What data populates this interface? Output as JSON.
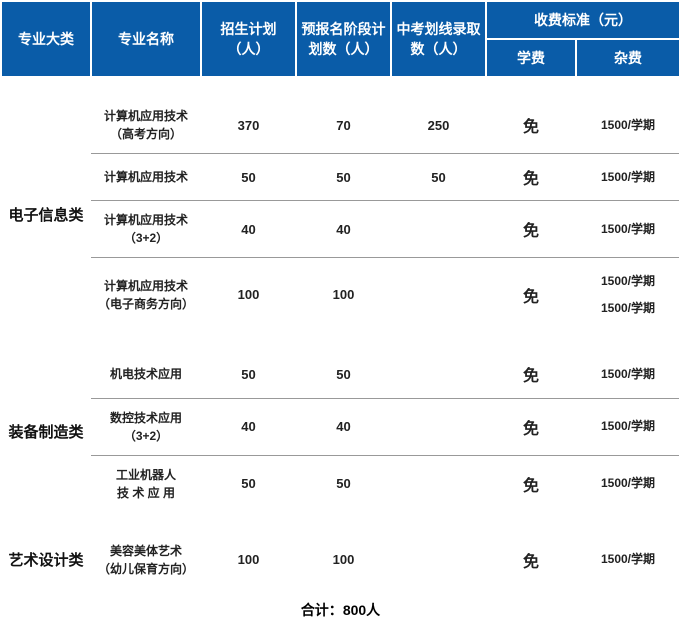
{
  "header": {
    "category": "专业大类",
    "major": "专业名称",
    "plan": "招生计划（人）",
    "pre_reg": "预报名阶段计划数（人）",
    "exam_line": "中考划线录取数（人）",
    "fee_group": "收费标准（元）",
    "tuition": "学费",
    "misc_fee": "杂费"
  },
  "groups": [
    {
      "category": "电子信息类",
      "rows": [
        {
          "major": "计算机应用技术\n（高考方向）",
          "plan": "370",
          "pre": "70",
          "exam": "250",
          "tuition": "免",
          "fee": "1500/学期"
        },
        {
          "major": "计算机应用技术",
          "plan": "50",
          "pre": "50",
          "exam": "50",
          "tuition": "免",
          "fee": "1500/学期"
        },
        {
          "major": "计算机应用技术\n（3+2）",
          "plan": "40",
          "pre": "40",
          "exam": "",
          "tuition": "免",
          "fee": "1500/学期"
        },
        {
          "major": "计算机应用技术\n（电子商务方向）",
          "plan": "100",
          "pre": "100",
          "exam": "",
          "tuition": "免",
          "fee": "1500/学期\n1500/学期"
        }
      ]
    },
    {
      "category": "装备制造类",
      "rows": [
        {
          "major": "机电技术应用",
          "plan": "50",
          "pre": "50",
          "exam": "",
          "tuition": "免",
          "fee": "1500/学期"
        },
        {
          "major": "数控技术应用\n（3+2）",
          "plan": "40",
          "pre": "40",
          "exam": "",
          "tuition": "免",
          "fee": "1500/学期"
        },
        {
          "major": "工业机器人\n技 术 应 用",
          "plan": "50",
          "pre": "50",
          "exam": "",
          "tuition": "免",
          "fee": "1500/学期"
        }
      ]
    },
    {
      "category": "艺术设计类",
      "rows": [
        {
          "major": "美容美体艺术\n（幼儿保育方向）",
          "plan": "100",
          "pre": "100",
          "exam": "",
          "tuition": "免",
          "fee": "1500/学期"
        }
      ]
    }
  ],
  "total_label": "合计：",
  "total_value": "800人",
  "colors": {
    "header_bg": "#0a5ca8",
    "header_fg": "#ffffff",
    "row_border": "#999999",
    "text": "#222222"
  }
}
